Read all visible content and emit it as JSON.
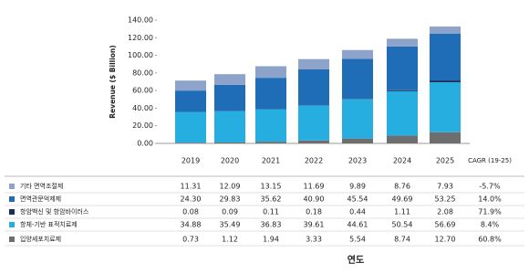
{
  "chart_data": {
    "type": "stacked_bar",
    "y_label": "Revenue ($ Billion)",
    "x_label": "연도",
    "categories": [
      "2019",
      "2020",
      "2021",
      "2022",
      "2023",
      "2024",
      "2025"
    ],
    "cagr_header": "CAGR (19-25)",
    "ylim": [
      0,
      140
    ],
    "yticks": [
      {
        "value": 0,
        "label": "0.00"
      },
      {
        "value": 20,
        "label": "20.00"
      },
      {
        "value": 40,
        "label": "40.00"
      },
      {
        "value": 60,
        "label": "60.00"
      },
      {
        "value": 80,
        "label": "80.00"
      },
      {
        "value": 100,
        "label": "100.00"
      },
      {
        "value": 120,
        "label": "120.00"
      },
      {
        "value": 140,
        "label": "140.00"
      }
    ],
    "series": [
      {
        "name": "기타 면역조절제",
        "color": "#8ea3c9",
        "values": [
          11.31,
          12.09,
          13.15,
          11.69,
          9.89,
          8.76,
          7.93
        ],
        "value_labels": [
          "11.31",
          "12.09",
          "13.15",
          "11.69",
          "9.89",
          "8.76",
          "7.93"
        ],
        "cagr": "-5.7%"
      },
      {
        "name": "면역관문억제제",
        "color": "#1f6db6",
        "values": [
          24.3,
          29.83,
          35.62,
          40.9,
          45.54,
          49.69,
          53.25
        ],
        "value_labels": [
          "24.30",
          "29.83",
          "35.62",
          "40.90",
          "45.54",
          "49.69",
          "53.25"
        ],
        "cagr": "14.0%"
      },
      {
        "name": "항암백신 및 항암바이러스",
        "color": "#1b2d5a",
        "values": [
          0.08,
          0.09,
          0.11,
          0.18,
          0.44,
          1.11,
          2.08
        ],
        "value_labels": [
          "0.08",
          "0.09",
          "0.11",
          "0.18",
          "0.44",
          "1.11",
          "2.08"
        ],
        "cagr": "71.9%"
      },
      {
        "name": "항체-기반 표적치료제",
        "color": "#27aee0",
        "values": [
          34.88,
          35.49,
          36.83,
          39.61,
          44.61,
          50.54,
          56.69
        ],
        "value_labels": [
          "34.88",
          "35.49",
          "36.83",
          "39.61",
          "44.61",
          "50.54",
          "56.69"
        ],
        "cagr": "8.4%"
      },
      {
        "name": "입양세포치료제",
        "color": "#6e6e6e",
        "values": [
          0.73,
          1.12,
          1.94,
          3.33,
          5.54,
          8.74,
          12.7
        ],
        "value_labels": [
          "0.73",
          "1.12",
          "1.94",
          "3.33",
          "5.54",
          "8.74",
          "12.70"
        ],
        "cagr": "60.8%"
      }
    ]
  }
}
